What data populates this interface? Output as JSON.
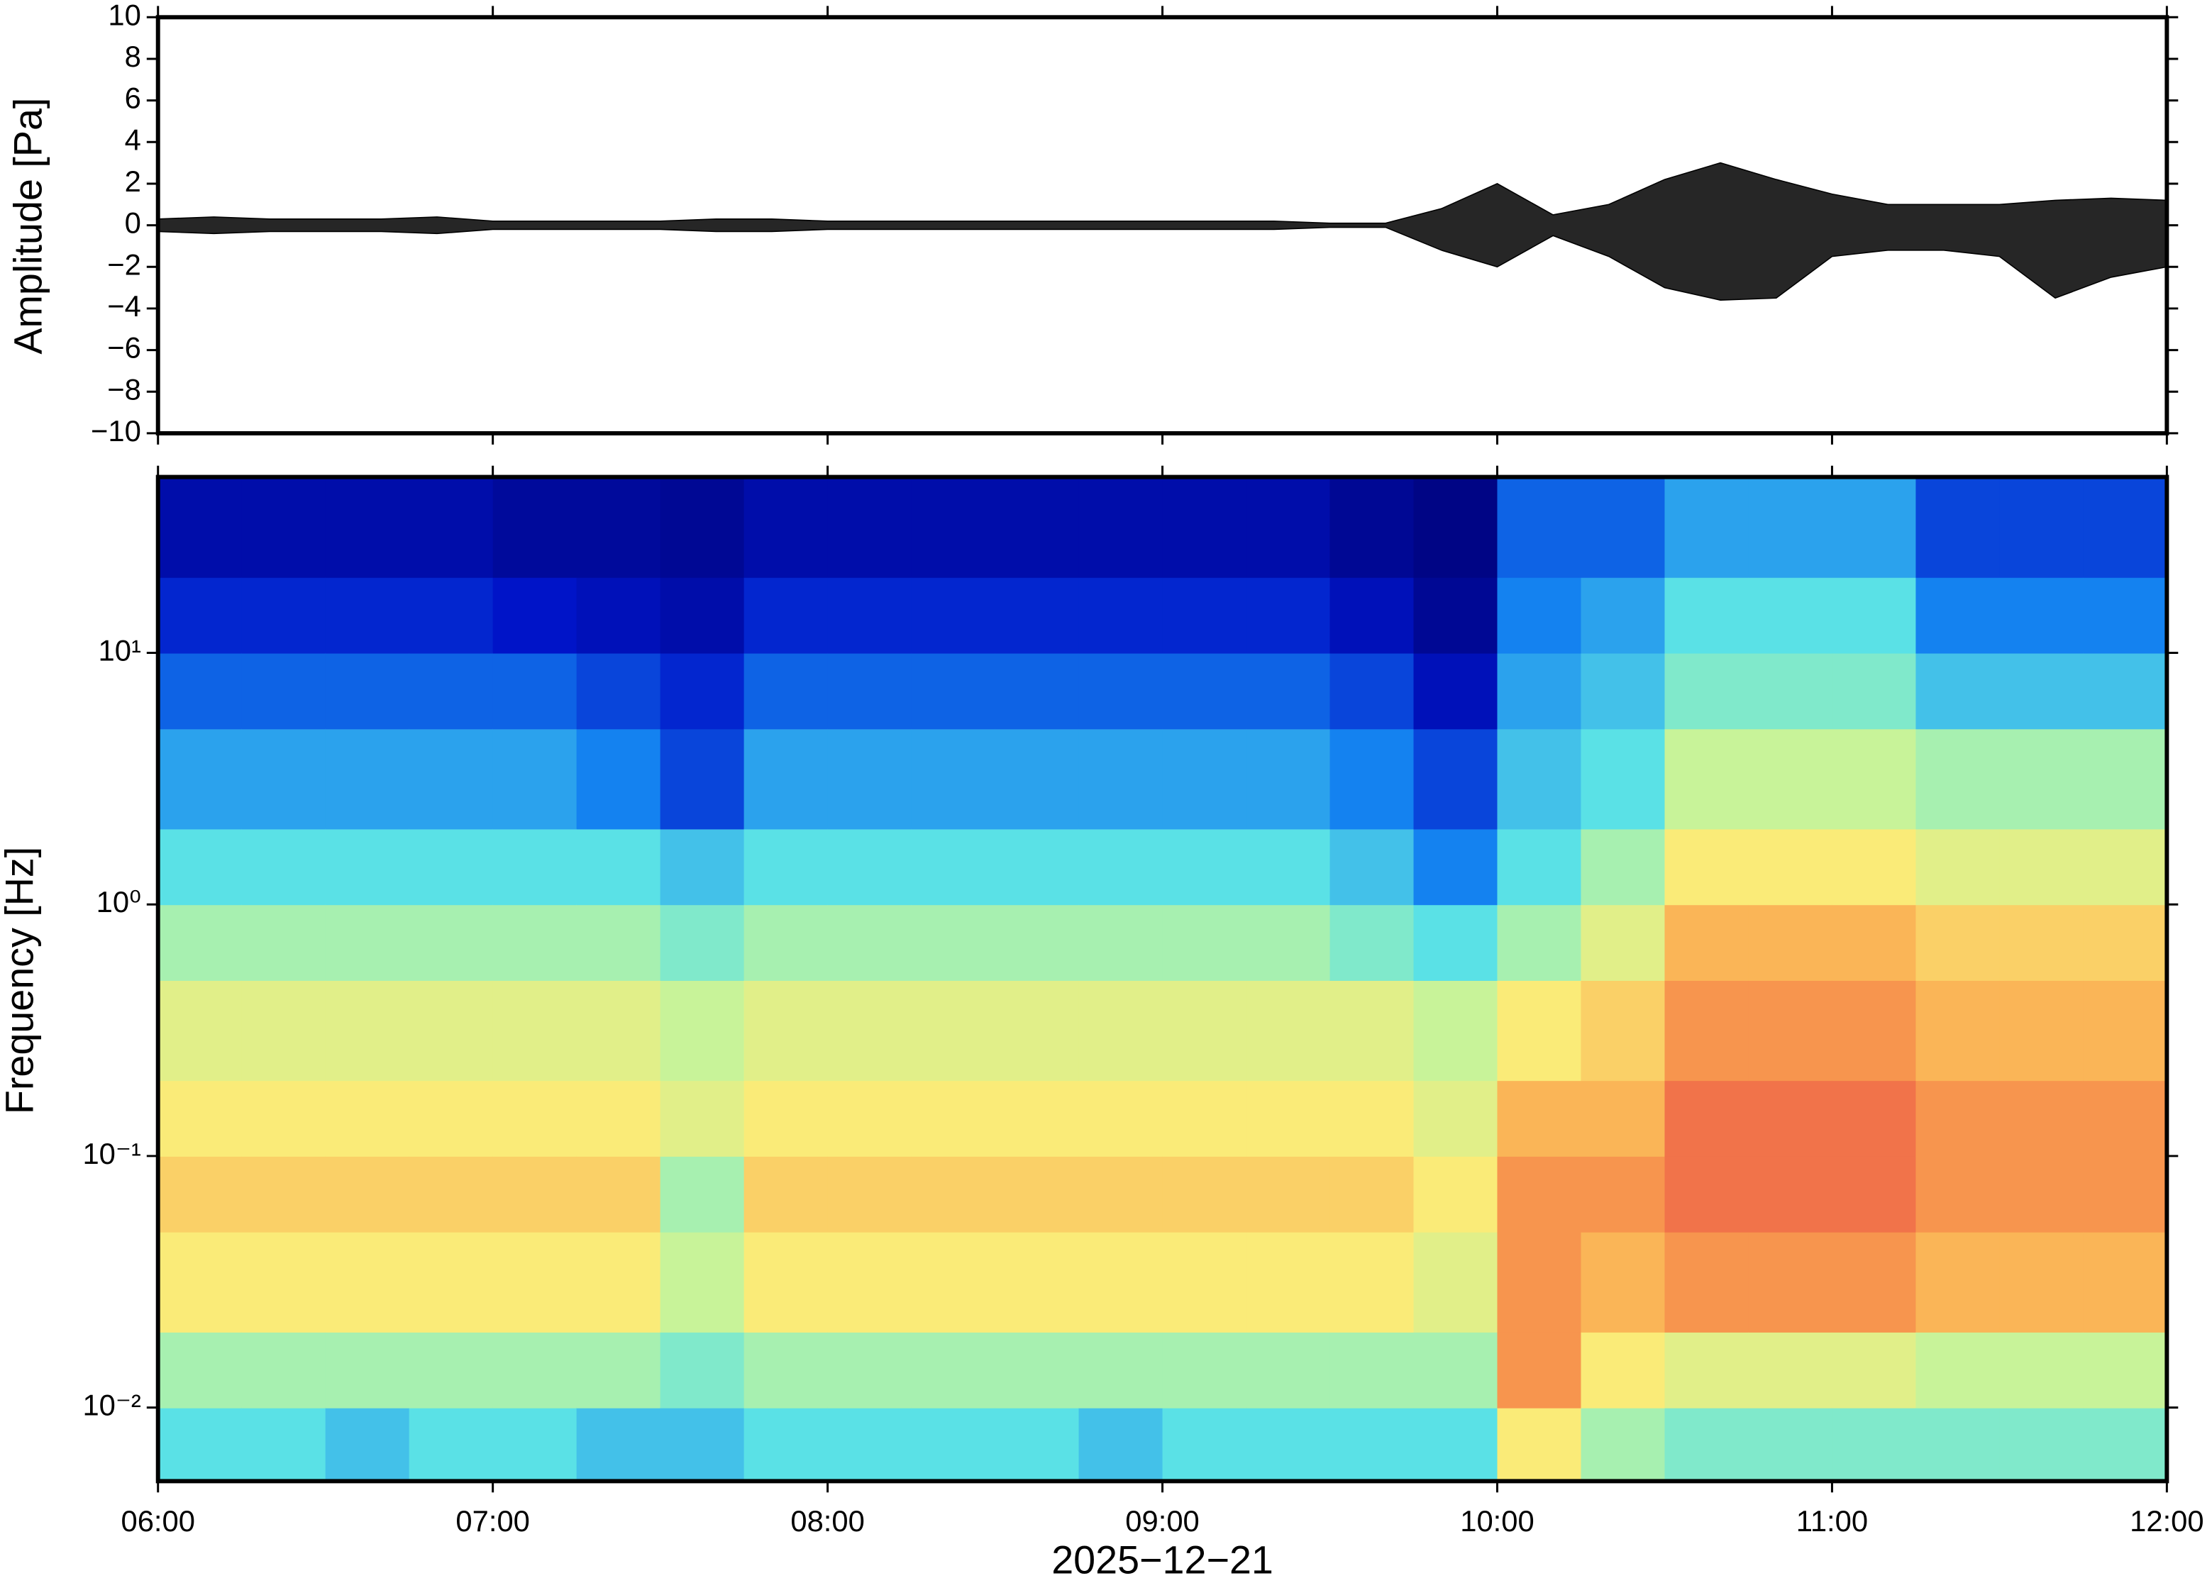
{
  "chart_data": [
    {
      "type": "line",
      "ylabel": "Amplitude [Pa]",
      "xlim": [
        "06:00",
        "12:00"
      ],
      "xticks": [
        "06:00",
        "07:00",
        "08:00",
        "09:00",
        "10:00",
        "11:00",
        "12:00"
      ],
      "ylim": [
        -10,
        10
      ],
      "yticks": [
        {
          "value": -10,
          "label": "−10"
        },
        {
          "value": -8,
          "label": "−8"
        },
        {
          "value": -6,
          "label": "−6"
        },
        {
          "value": -4,
          "label": "−4"
        },
        {
          "value": -2,
          "label": "−2"
        },
        0,
        2,
        4,
        6,
        8,
        10
      ],
      "x": [
        "06:00",
        "06:10",
        "06:20",
        "06:30",
        "06:40",
        "06:50",
        "07:00",
        "07:10",
        "07:20",
        "07:30",
        "07:40",
        "07:50",
        "08:00",
        "08:10",
        "08:20",
        "08:30",
        "08:40",
        "08:50",
        "09:00",
        "09:10",
        "09:20",
        "09:30",
        "09:40",
        "09:50",
        "10:00",
        "10:10",
        "10:20",
        "10:30",
        "10:40",
        "10:50",
        "11:00",
        "11:10",
        "11:20",
        "11:30",
        "11:40",
        "11:50",
        "12:00"
      ],
      "series": [
        {
          "color": "#000000",
          "values": [
            0.3,
            0.4,
            0.3,
            0.3,
            0.3,
            0.4,
            0.2,
            0.2,
            0.2,
            0.2,
            0.3,
            0.3,
            0.2,
            0.2,
            0.2,
            0.2,
            0.2,
            0.2,
            0.2,
            0.2,
            0.2,
            0.1,
            0.1,
            0.8,
            2.0,
            0.5,
            1.0,
            2.2,
            3.0,
            2.2,
            1.5,
            1.0,
            1.0,
            1.0,
            1.2,
            1.3,
            1.2
          ]
        },
        {
          "color": "#000000",
          "values": [
            -0.3,
            -0.4,
            -0.3,
            -0.3,
            -0.3,
            -0.4,
            -0.2,
            -0.2,
            -0.2,
            -0.2,
            -0.3,
            -0.3,
            -0.2,
            -0.2,
            -0.2,
            -0.2,
            -0.2,
            -0.2,
            -0.2,
            -0.2,
            -0.2,
            -0.1,
            -0.1,
            -1.2,
            -2.0,
            -0.5,
            -1.5,
            -3.0,
            -3.6,
            -3.5,
            -1.5,
            -1.2,
            -1.2,
            -1.5,
            -3.5,
            -2.5,
            -2.0
          ]
        }
      ]
    },
    {
      "type": "heatmap",
      "ylabel": "Frequency [Hz]",
      "xlabel": "2025−12−21",
      "log_y": true,
      "xlim": [
        "06:00",
        "12:00"
      ],
      "xticks": [
        "06:00",
        "07:00",
        "08:00",
        "09:00",
        "10:00",
        "11:00",
        "12:00"
      ],
      "ylim": [
        0.0051,
        50
      ],
      "yticks": [
        {
          "value": 0.01,
          "label": "10⁻²"
        },
        {
          "value": 0.1,
          "label": "10⁻¹"
        },
        {
          "value": 1,
          "label": "10⁰"
        },
        {
          "value": 10,
          "label": "10¹"
        }
      ],
      "x_edges": [
        "06:00",
        "06:15",
        "06:30",
        "06:45",
        "07:00",
        "07:15",
        "07:30",
        "07:45",
        "08:00",
        "08:15",
        "08:30",
        "08:45",
        "09:00",
        "09:15",
        "09:30",
        "09:45",
        "10:00",
        "10:15",
        "10:30",
        "10:45",
        "11:00",
        "11:15",
        "11:30",
        "11:45",
        "12:00"
      ],
      "y_edges": [
        0.0051,
        0.01,
        0.02,
        0.05,
        0.1,
        0.2,
        0.5,
        1,
        2,
        5,
        10,
        20,
        50
      ],
      "zlim": [
        0,
        10
      ],
      "z": [
        [
          4.5,
          5.5,
          7,
          7.5,
          7,
          6.5,
          5.5,
          4.5,
          3.5,
          2.5,
          1.5,
          0.8
        ],
        [
          4.5,
          5.5,
          7,
          7.5,
          7,
          6.5,
          5.5,
          4.5,
          3.5,
          2.5,
          1.5,
          0.8
        ],
        [
          4,
          5.5,
          7,
          7.5,
          7,
          6.5,
          5.5,
          4.5,
          3.5,
          2.5,
          1.5,
          0.8
        ],
        [
          4.5,
          5.5,
          7,
          7.5,
          7,
          6.5,
          5.5,
          4.5,
          3.5,
          2.5,
          1.5,
          0.8
        ],
        [
          4.5,
          5.5,
          7,
          7.5,
          7,
          6.5,
          5.5,
          4.5,
          3.5,
          2.5,
          1.2,
          0.6
        ],
        [
          4,
          5.5,
          7,
          7.5,
          7,
          6.5,
          5.5,
          4.5,
          3,
          2,
          1,
          0.6
        ],
        [
          4,
          5,
          6,
          5.5,
          6.5,
          6,
          5,
          4,
          2,
          1.5,
          0.8,
          0.5
        ],
        [
          4.5,
          5.5,
          7,
          7.5,
          7,
          6.5,
          5.5,
          4.5,
          3.5,
          2.5,
          1.5,
          0.8
        ],
        [
          4.5,
          5.5,
          7,
          7.5,
          7,
          6.5,
          5.5,
          4.5,
          3.5,
          2.5,
          1.5,
          0.8
        ],
        [
          4.5,
          5.5,
          7,
          7.5,
          7,
          6.5,
          5.5,
          4.5,
          3.5,
          2.5,
          1.5,
          0.8
        ],
        [
          4.5,
          5.5,
          7,
          7.5,
          7,
          6.5,
          5.5,
          4.5,
          3.5,
          2.5,
          1.5,
          0.8
        ],
        [
          4,
          5.5,
          7,
          7.5,
          7,
          6.5,
          5.5,
          4.5,
          3.5,
          2.5,
          1.5,
          0.8
        ],
        [
          4.5,
          5.5,
          7,
          7.5,
          7,
          6.5,
          5.5,
          4.5,
          3.5,
          2.5,
          1.5,
          0.8
        ],
        [
          4.5,
          5.5,
          7,
          7.5,
          7,
          6.5,
          5.5,
          4.5,
          3.5,
          2.5,
          1.5,
          0.8
        ],
        [
          4.5,
          5.5,
          7,
          7.5,
          7,
          6.5,
          5,
          4,
          3,
          2,
          1,
          0.5
        ],
        [
          4.5,
          5.5,
          6.5,
          7,
          6.5,
          6,
          4.5,
          3,
          2,
          1,
          0.5,
          0.3
        ],
        [
          7,
          8.5,
          8.5,
          8.5,
          8,
          7,
          5.5,
          4.5,
          4,
          3.5,
          3,
          2.5
        ],
        [
          5.5,
          7,
          8,
          8.5,
          8,
          7.5,
          6.5,
          5.5,
          4.5,
          4,
          3.5,
          2.5
        ],
        [
          5,
          6.5,
          8.5,
          9,
          9,
          8.5,
          8,
          7,
          6,
          5,
          4.5,
          3.5
        ],
        [
          5,
          6.5,
          8.5,
          9,
          9,
          8.5,
          8,
          7,
          6,
          5,
          4.5,
          3.5
        ],
        [
          5,
          6.5,
          8.5,
          9,
          9,
          8.5,
          8,
          7,
          6,
          5,
          4.5,
          3.5
        ],
        [
          5,
          6,
          8,
          8.5,
          8.5,
          8,
          7.5,
          6.5,
          5.5,
          4,
          3,
          2
        ],
        [
          5,
          6,
          8,
          8.5,
          8.5,
          8,
          7.5,
          6.5,
          5.5,
          4,
          3,
          2
        ],
        [
          5,
          6,
          8,
          8.5,
          8.5,
          8,
          7.5,
          6.5,
          5.5,
          4,
          3,
          2
        ]
      ]
    }
  ]
}
